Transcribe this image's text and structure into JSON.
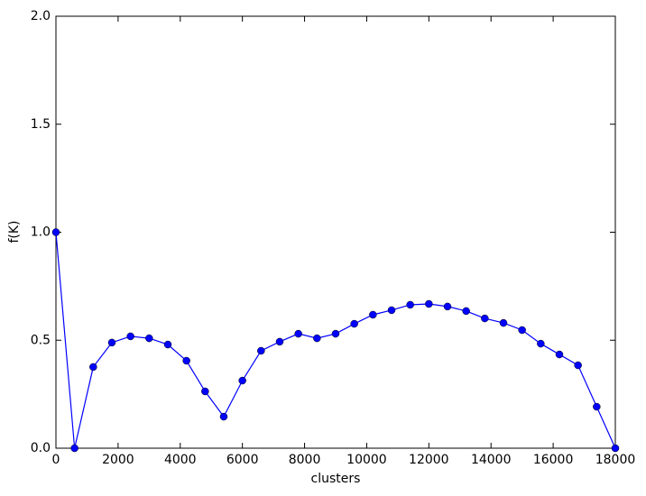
{
  "chart_data": {
    "type": "line",
    "x_label": "clusters",
    "y_label": "f(K)",
    "x": [
      0,
      600,
      1200,
      1800,
      2400,
      3000,
      3600,
      4200,
      4800,
      5400,
      6000,
      6600,
      7200,
      7800,
      8400,
      9000,
      9600,
      10200,
      10800,
      11400,
      12000,
      12600,
      13200,
      13800,
      14400,
      15000,
      15600,
      16200,
      16800,
      17400,
      18000
    ],
    "series": [
      {
        "color": "#0000ff",
        "values": [
          1.0,
          0.0,
          0.376,
          0.489,
          0.518,
          0.509,
          0.48,
          0.405,
          0.263,
          0.146,
          0.313,
          0.451,
          0.493,
          0.53,
          0.509,
          0.53,
          0.576,
          0.618,
          0.639,
          0.664,
          0.668,
          0.656,
          0.635,
          0.601,
          0.58,
          0.547,
          0.484,
          0.434,
          0.384,
          0.192,
          0.0
        ]
      }
    ],
    "xlim": [
      0,
      18000
    ],
    "ylim": [
      0,
      2
    ],
    "xticks": [
      0,
      2000,
      4000,
      6000,
      8000,
      10000,
      12000,
      14000,
      16000,
      18000
    ],
    "yticks": [
      {
        "value": 0,
        "label": "0.0"
      },
      0.5,
      {
        "value": 1,
        "label": "1.0"
      },
      1.5,
      {
        "value": 2,
        "label": "2.0"
      }
    ],
    "grid": false
  }
}
